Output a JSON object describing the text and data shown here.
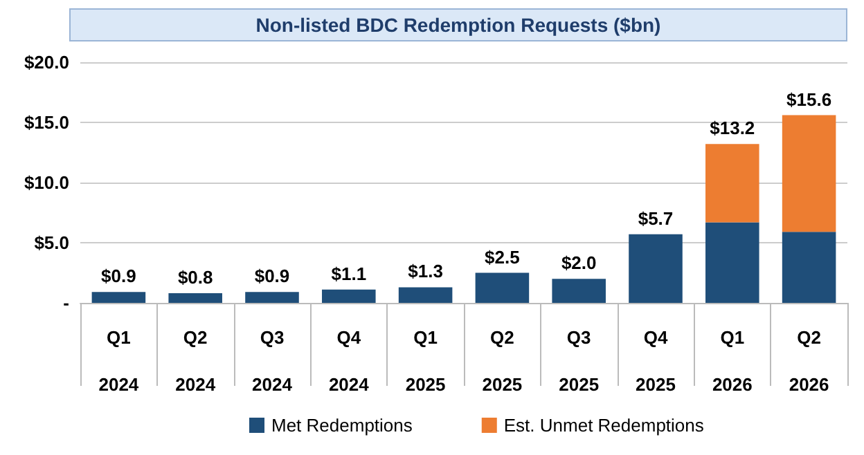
{
  "chart_data": {
    "type": "bar",
    "title": "Non-listed BDC Redemption Requests ($bn)",
    "categories": [
      "Q1 2024",
      "Q2 2024",
      "Q3 2024",
      "Q4 2024",
      "Q1 2025",
      "Q2 2025",
      "Q3 2025",
      "Q4 2025",
      "Q1 2026",
      "Q2 2026"
    ],
    "series": [
      {
        "name": "Met Redemptions",
        "color": "#1f4e79",
        "values": [
          0.9,
          0.8,
          0.9,
          1.1,
          1.3,
          2.5,
          2.0,
          5.7,
          6.7,
          5.9
        ]
      },
      {
        "name": "Est. Unmet Redemptions",
        "color": "#ed7d31",
        "values": [
          null,
          null,
          null,
          null,
          null,
          null,
          null,
          null,
          6.5,
          9.7
        ]
      }
    ],
    "stacked": true,
    "totals": [
      "$0.9",
      "$0.8",
      "$0.9",
      "$1.1",
      "$1.3",
      "$2.5",
      "$2.0",
      "$5.7",
      "$13.2",
      "$15.6"
    ],
    "ylim": [
      0,
      20
    ],
    "yticks": [
      {
        "value": 0,
        "label": "-"
      },
      {
        "value": 5,
        "label": "$5.0"
      },
      {
        "value": 10,
        "label": "$10.0"
      },
      {
        "value": 15,
        "label": "$15.0"
      },
      {
        "value": 20,
        "label": "$20.0"
      }
    ],
    "grid": "y",
    "legend": "bottom"
  }
}
